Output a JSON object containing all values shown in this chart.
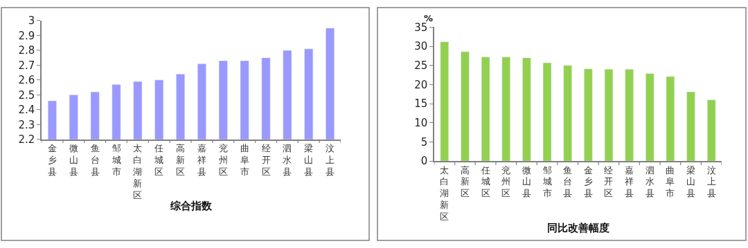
{
  "chart_data": [
    {
      "type": "bar",
      "xlabel": "综合指数",
      "color": "#9999ff",
      "categories": [
        "金乡县",
        "微山县",
        "鱼台县",
        "邹城市",
        "太白湖新区",
        "任城区",
        "高新区",
        "嘉祥县",
        "兖州区",
        "曲阜市",
        "经开区",
        "泗水县",
        "梁山县",
        "汶上县"
      ],
      "values": [
        2.46,
        2.5,
        2.52,
        2.57,
        2.59,
        2.6,
        2.64,
        2.71,
        2.73,
        2.73,
        2.75,
        2.8,
        2.81,
        2.95
      ],
      "ylim": [
        2.2,
        3
      ],
      "yticks": [
        2.2,
        2.3,
        2.4,
        2.5,
        2.6,
        2.7,
        2.8,
        2.9,
        {
          "value": 3,
          "label": "3"
        }
      ]
    },
    {
      "type": "bar",
      "xlabel": "同比改善幅度",
      "ylabel": "%",
      "color": "#92d050",
      "categories": [
        "太白湖新区",
        "高新区",
        "任城区",
        "兖州区",
        "微山县",
        "邹城市",
        "鱼台县",
        "金乡县",
        "经开区",
        "嘉祥县",
        "泗水县",
        "曲阜市",
        "梁山县",
        "汶上县"
      ],
      "values": [
        31.2,
        28.6,
        27.2,
        27.2,
        27.0,
        25.7,
        25.0,
        24.1,
        24.0,
        24.0,
        22.9,
        22.1,
        18.1,
        16.0
      ],
      "ylim": [
        0,
        35
      ],
      "yticks": [
        0,
        5,
        10,
        15,
        20,
        25,
        30,
        35
      ]
    }
  ]
}
